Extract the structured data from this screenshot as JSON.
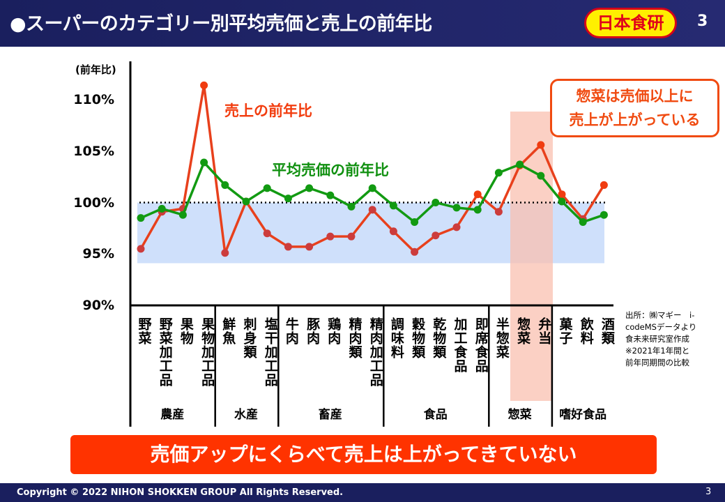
{
  "header": {
    "title": "●スーパーのカテゴリー別平均売価と売上の前年比",
    "logo": "日本食研",
    "page": "3"
  },
  "callout": {
    "line1": "惣菜は売価以上に",
    "line2": "売上が上がっている"
  },
  "note": [
    "出所：㈱マギー　i-codeMSデータより",
    "食未来研究室作成",
    "※2021年1年間と",
    "前年同期間の比較"
  ],
  "banner": "売価アップにくらべて売上は上がってきていない",
  "footer": {
    "copyright": "Copyright © 2022 NIHON SHOKKEN GROUP All Rights Reserved.",
    "page": "3"
  },
  "colors": {
    "sales": "#e8401c",
    "price": "#129a12",
    "band": "#cfe0fb",
    "highlight": "#f9c0b0"
  },
  "chart_data": {
    "type": "line",
    "ylabel": "(前年比)",
    "ylim": [
      90,
      110
    ],
    "yticks": [
      "90%",
      "95%",
      "100%",
      "105%",
      "110%"
    ],
    "reference_line": 100,
    "categories": [
      "野菜",
      "野菜加工品",
      "果物",
      "果物加工品",
      "鮮魚",
      "刺身類",
      "塩干加工品",
      "牛肉",
      "豚肉",
      "鶏肉",
      "精肉類",
      "精肉加工品",
      "調味料",
      "穀物類",
      "乾物類",
      "加工食品",
      "即席食品",
      "半惣菜",
      "惣菜",
      "弁当",
      "菓子",
      "飲料",
      "酒類"
    ],
    "groups": [
      {
        "name": "農産",
        "count": 4
      },
      {
        "name": "水産",
        "count": 3
      },
      {
        "name": "畜産",
        "count": 5
      },
      {
        "name": "食品",
        "count": 5
      },
      {
        "name": "惣菜",
        "count": 3
      },
      {
        "name": "嗜好食品",
        "count": 3
      }
    ],
    "series": [
      {
        "name": "売上の前年比",
        "values": [
          95.5,
          99.1,
          99.4,
          111.4,
          95.1,
          100.1,
          97.0,
          95.7,
          95.7,
          96.7,
          96.7,
          99.3,
          97.2,
          95.2,
          96.8,
          97.6,
          100.8,
          99.1,
          103.6,
          105.6,
          100.8,
          98.4,
          101.7
        ]
      },
      {
        "name": "平均売価の前年比",
        "values": [
          98.5,
          99.4,
          98.8,
          103.9,
          101.7,
          100.1,
          101.4,
          100.4,
          101.4,
          100.7,
          99.6,
          101.4,
          99.7,
          98.1,
          100.0,
          99.5,
          99.3,
          102.9,
          103.7,
          102.6,
          100.1,
          98.1,
          98.8
        ]
      }
    ]
  }
}
